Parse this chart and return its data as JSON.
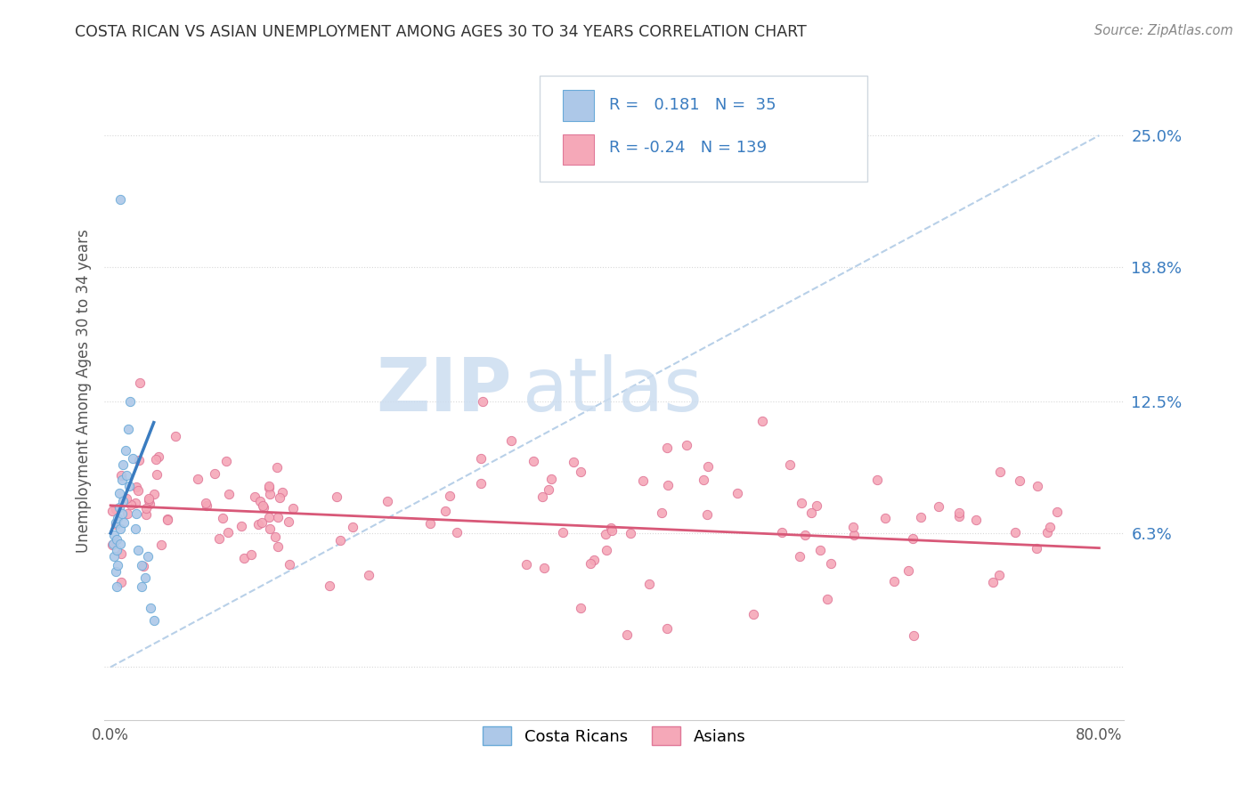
{
  "title": "COSTA RICAN VS ASIAN UNEMPLOYMENT AMONG AGES 30 TO 34 YEARS CORRELATION CHART",
  "source": "Source: ZipAtlas.com",
  "ylabel": "Unemployment Among Ages 30 to 34 years",
  "xlim": [
    -0.005,
    0.82
  ],
  "ylim": [
    -0.025,
    0.285
  ],
  "ytick_vals": [
    0.0,
    0.063,
    0.125,
    0.188,
    0.25
  ],
  "ytick_labels": [
    "",
    "6.3%",
    "12.5%",
    "18.8%",
    "25.0%"
  ],
  "xtick_vals": [
    0.0,
    0.1,
    0.2,
    0.3,
    0.4,
    0.5,
    0.6,
    0.7,
    0.8
  ],
  "xtick_labels": [
    "0.0%",
    "",
    "",
    "",
    "",
    "",
    "",
    "",
    "80.0%"
  ],
  "cr_R": 0.181,
  "cr_N": 35,
  "asian_R": -0.24,
  "asian_N": 139,
  "cr_color": "#adc8e8",
  "cr_edge": "#6aaad8",
  "asian_color": "#f5a8b8",
  "asian_edge": "#e07898",
  "cr_line_color": "#3a7cc0",
  "asian_line_color": "#d85878",
  "dashed_line_color": "#b8d0e8",
  "watermark_zip": "ZIP",
  "watermark_atlas": "atlas",
  "watermark_color": "#ccddf0",
  "background_color": "#ffffff",
  "title_color": "#333333",
  "label_color": "#555555",
  "tick_color_right": "#3a7cc0",
  "grid_color": "#d8d8d8",
  "legend_border_color": "#d0d8e0",
  "cr_line_x": [
    0.0,
    0.035
  ],
  "cr_line_y": [
    0.063,
    0.115
  ],
  "asian_line_x": [
    0.0,
    0.8
  ],
  "asian_line_y": [
    0.076,
    0.056
  ],
  "dash_line_x": [
    0.0,
    0.8
  ],
  "dash_line_y": [
    0.0,
    0.25
  ]
}
